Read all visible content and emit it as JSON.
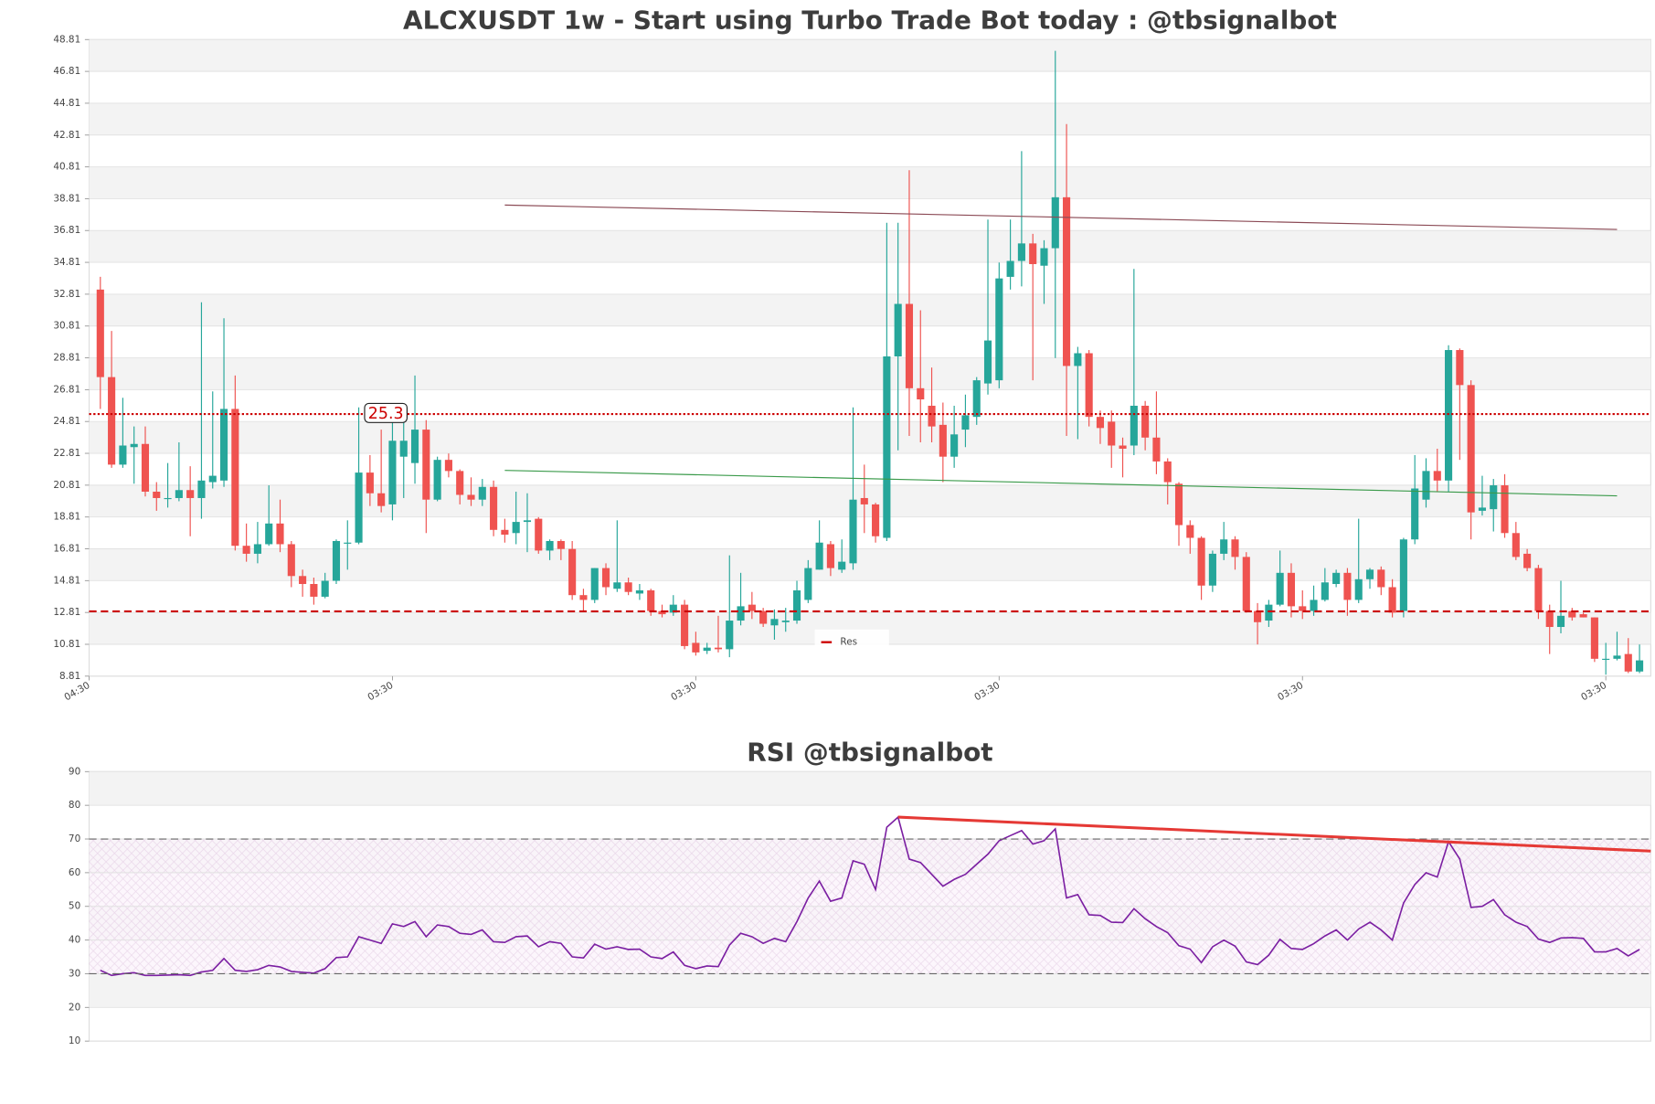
{
  "chart_data": [
    {
      "type": "candlestick",
      "title": "ALCXUSDT 1w - Start using Turbo Trade Bot today : @tbsignalbot",
      "up_color": "#26a69a",
      "down_color": "#ef5350",
      "open": [
        33.1,
        27.6,
        22.1,
        23.2,
        23.4,
        20.4,
        20.0,
        20.0,
        20.5,
        20.0,
        21.0,
        21.1,
        25.6,
        17.0,
        16.5,
        17.1,
        18.4,
        17.1,
        15.1,
        14.6,
        13.8,
        14.8,
        17.2,
        17.2,
        21.6,
        20.3,
        19.6,
        22.6,
        22.2,
        24.3,
        19.9,
        22.4,
        21.7,
        20.2,
        19.9,
        20.7,
        18.0,
        17.8,
        18.5,
        18.7,
        16.7,
        17.3,
        16.8,
        13.9,
        13.6,
        15.6,
        14.3,
        14.7,
        14.0,
        14.2,
        12.9,
        12.8,
        13.3,
        10.9,
        10.4,
        10.6,
        10.5,
        12.3,
        13.3,
        12.9,
        12.0,
        12.2,
        12.3,
        13.6,
        15.5,
        17.1,
        15.5,
        15.9,
        20.0,
        19.6,
        17.5,
        28.9,
        32.2,
        26.9,
        25.8,
        24.6,
        22.6,
        24.3,
        25.1,
        27.2,
        27.4,
        33.9,
        34.9,
        36.0,
        34.6,
        35.7,
        38.9,
        28.3,
        29.1,
        25.1,
        24.8,
        23.3,
        23.3,
        25.8,
        23.8,
        22.3,
        20.9,
        18.3,
        17.5,
        14.5,
        16.5,
        17.4,
        16.3,
        12.9,
        12.3,
        13.3,
        15.3,
        13.2,
        12.9,
        13.6,
        14.6,
        15.3,
        13.6,
        14.9,
        15.5,
        14.4,
        12.9,
        17.4,
        19.9,
        21.7,
        21.1,
        29.3,
        27.1,
        19.2,
        19.3,
        20.8,
        17.8,
        16.5,
        15.6,
        12.9,
        11.9,
        12.9,
        12.7,
        12.5,
        9.9,
        9.9,
        10.2,
        9.1
      ],
      "high": [
        33.9,
        30.5,
        26.3,
        24.5,
        24.5,
        21.0,
        22.2,
        23.5,
        22.0,
        32.3,
        26.7,
        31.3,
        27.7,
        18.4,
        18.5,
        20.8,
        19.9,
        17.3,
        15.5,
        15.0,
        15.3,
        17.4,
        18.6,
        25.7,
        22.7,
        24.3,
        25.4,
        25.0,
        27.7,
        24.9,
        22.6,
        22.8,
        21.8,
        21.3,
        21.2,
        21.1,
        18.7,
        20.4,
        20.3,
        18.8,
        17.4,
        17.4,
        17.3,
        14.3,
        15.6,
        15.9,
        18.6,
        15.0,
        14.6,
        14.3,
        13.3,
        13.9,
        13.6,
        11.6,
        10.9,
        12.6,
        16.4,
        15.3,
        14.1,
        13.1,
        13.0,
        13.1,
        14.8,
        16.1,
        18.6,
        17.3,
        17.4,
        25.7,
        22.1,
        19.7,
        37.3,
        37.3,
        40.6,
        31.8,
        28.2,
        26.0,
        25.8,
        26.5,
        27.6,
        37.5,
        34.8,
        37.5,
        41.8,
        36.6,
        36.2,
        48.1,
        43.5,
        29.5,
        29.3,
        25.5,
        25.5,
        23.8,
        34.4,
        26.1,
        26.7,
        22.5,
        21.0,
        18.6,
        17.6,
        16.7,
        18.5,
        17.6,
        16.6,
        13.4,
        13.6,
        16.7,
        15.9,
        14.2,
        14.5,
        15.6,
        15.5,
        15.6,
        18.7,
        15.6,
        15.7,
        14.9,
        17.5,
        22.7,
        22.5,
        23.1,
        29.6,
        29.4,
        27.4,
        21.4,
        21.2,
        21.5,
        18.5,
        16.8,
        15.8,
        13.3,
        14.8,
        13.1,
        12.8,
        12.5,
        10.9,
        11.6,
        11.2,
        10.8
      ],
      "low": [
        25.6,
        21.9,
        21.9,
        20.9,
        20.1,
        19.2,
        19.4,
        19.8,
        17.6,
        18.7,
        20.6,
        20.7,
        16.7,
        16.0,
        15.9,
        17.0,
        16.6,
        14.4,
        13.8,
        13.3,
        13.7,
        14.6,
        15.5,
        17.1,
        19.5,
        19.1,
        18.6,
        20.0,
        20.9,
        17.8,
        19.8,
        21.3,
        19.6,
        19.5,
        19.5,
        17.6,
        17.2,
        17.1,
        16.6,
        16.5,
        16.1,
        16.1,
        13.6,
        12.9,
        13.4,
        13.9,
        14.1,
        13.9,
        13.6,
        12.6,
        12.5,
        12.6,
        10.5,
        10.1,
        10.2,
        10.3,
        10.0,
        12.0,
        12.4,
        11.9,
        11.1,
        11.6,
        12.1,
        13.4,
        15.5,
        15.1,
        15.3,
        15.5,
        17.8,
        17.2,
        17.3,
        23.0,
        23.9,
        23.5,
        23.5,
        21.0,
        21.9,
        23.2,
        24.6,
        26.5,
        26.9,
        33.1,
        33.3,
        27.4,
        32.2,
        28.8,
        23.9,
        23.7,
        24.5,
        23.4,
        21.9,
        21.3,
        22.7,
        23.0,
        21.5,
        19.6,
        17.0,
        16.5,
        13.6,
        14.1,
        16.1,
        15.5,
        12.8,
        10.8,
        11.9,
        13.2,
        12.5,
        12.4,
        12.6,
        13.5,
        14.4,
        12.6,
        13.4,
        14.3,
        13.9,
        12.5,
        12.5,
        17.1,
        19.4,
        20.4,
        20.4,
        22.4,
        17.4,
        18.9,
        17.9,
        17.5,
        16.1,
        15.4,
        12.4,
        10.2,
        11.5,
        12.3,
        12.5,
        9.7,
        8.9,
        9.8,
        9.0,
        9.0
      ],
      "close": [
        27.6,
        22.1,
        23.3,
        23.4,
        20.4,
        20.0,
        20.0,
        20.5,
        20.0,
        21.1,
        21.4,
        25.6,
        17.0,
        16.5,
        17.1,
        18.4,
        17.1,
        15.1,
        14.6,
        13.8,
        14.8,
        17.3,
        17.2,
        21.6,
        20.3,
        19.5,
        23.6,
        23.6,
        24.3,
        19.9,
        22.4,
        21.7,
        20.2,
        19.9,
        20.7,
        18.0,
        17.7,
        18.5,
        18.6,
        16.7,
        17.3,
        16.8,
        13.9,
        13.6,
        15.6,
        14.4,
        14.7,
        14.1,
        14.2,
        12.9,
        12.7,
        13.3,
        10.7,
        10.3,
        10.6,
        10.5,
        12.3,
        13.2,
        12.9,
        12.1,
        12.4,
        12.3,
        14.2,
        15.6,
        17.2,
        15.6,
        16.0,
        19.9,
        19.6,
        17.6,
        28.9,
        32.2,
        26.9,
        26.2,
        24.5,
        22.6,
        24.0,
        25.2,
        27.4,
        29.9,
        33.8,
        34.9,
        36.0,
        34.7,
        35.7,
        38.9,
        28.3,
        29.1,
        25.1,
        24.4,
        23.3,
        23.1,
        25.8,
        23.8,
        22.3,
        21.0,
        18.3,
        17.5,
        14.5,
        16.5,
        17.4,
        16.3,
        12.9,
        12.2,
        13.3,
        15.3,
        13.2,
        12.9,
        13.6,
        14.7,
        15.3,
        13.6,
        14.9,
        15.5,
        14.4,
        12.8,
        17.4,
        20.6,
        21.7,
        21.1,
        29.3,
        27.1,
        19.1,
        19.4,
        20.8,
        17.8,
        16.3,
        15.6,
        12.9,
        11.9,
        12.6,
        12.5,
        12.5,
        9.9,
        9.9,
        10.1,
        9.1,
        9.8
      ],
      "xlim": [
        -1,
        138
      ],
      "xticks": [
        {
          "value": -1,
          "label": "04:30"
        },
        {
          "value": 26,
          "label": "03:30"
        },
        {
          "value": 53,
          "label": "03:30"
        },
        {
          "value": 80,
          "label": "03:30"
        },
        {
          "value": 107,
          "label": "03:30"
        },
        {
          "value": 134,
          "label": "03:30"
        }
      ],
      "ylim": [
        8.81,
        48.81
      ],
      "yticks": [
        8.81,
        10.81,
        12.81,
        14.81,
        16.81,
        18.81,
        20.81,
        22.81,
        24.81,
        26.81,
        28.81,
        30.81,
        32.81,
        34.81,
        36.81,
        38.81,
        40.81,
        42.81,
        44.81,
        46.81,
        48.81
      ],
      "hlines": [
        {
          "value": 25.28,
          "label": "25.3",
          "color": "#cc0000",
          "style": "dotted"
        },
        {
          "value": 12.88,
          "name": "Res",
          "color": "#cc0000",
          "style": "dashed"
        }
      ],
      "trendlines": [
        {
          "x": [
            36,
            135
          ],
          "y": [
            38.41,
            36.88
          ],
          "color": "#8b4a55"
        },
        {
          "x": [
            36,
            135
          ],
          "y": [
            21.74,
            20.14
          ],
          "color": "#3a9a4a"
        }
      ],
      "legend": "lower center"
    },
    {
      "type": "line",
      "title": "RSI @tbsignalbot",
      "color": "#7b1fa2",
      "values": [
        31,
        29.5,
        30,
        30.3,
        29.5,
        29.5,
        29.6,
        29.7,
        29.5,
        30.5,
        31,
        34.5,
        31,
        30.7,
        31.2,
        32.5,
        32,
        30.7,
        30.4,
        30.2,
        31.5,
        34.8,
        35,
        41,
        40,
        39,
        44.8,
        44,
        45.5,
        41,
        44.5,
        44,
        42,
        41.7,
        43,
        39.5,
        39.3,
        41,
        41.2,
        38,
        39.5,
        39,
        35,
        34.7,
        38.8,
        37.3,
        38,
        37.2,
        37.3,
        35,
        34.5,
        36.5,
        32.5,
        31.5,
        32.3,
        32.1,
        38.5,
        42,
        41,
        39,
        40.5,
        39.5,
        45.5,
        52.5,
        57.5,
        51.5,
        52.5,
        63.5,
        62.5,
        55,
        73.5,
        76.5,
        64,
        63,
        59.5,
        56,
        58,
        59.5,
        62.5,
        65.5,
        69.5,
        71,
        72.5,
        68.5,
        69.5,
        73,
        52.5,
        53.5,
        47.5,
        47.3,
        45.3,
        45.2,
        49.3,
        46.3,
        44,
        42.2,
        38.3,
        37.3,
        33.3,
        38,
        40,
        38.2,
        33.5,
        32.7,
        35.5,
        40.2,
        37.5,
        37.2,
        38.9,
        41.2,
        43,
        40,
        43.3,
        45.3,
        43,
        40,
        51,
        56.5,
        60,
        58.7,
        69.2,
        64,
        49.7,
        50,
        52,
        47.5,
        45.3,
        44,
        40.3,
        39.3,
        40.6,
        40.7,
        40.5,
        36.5,
        36.5,
        37.5,
        35.3,
        37.2
      ],
      "xlim": [
        -1,
        138
      ],
      "ylim": [
        10,
        90
      ],
      "yticks": [
        10,
        20,
        30,
        40,
        50,
        60,
        70,
        80,
        90
      ],
      "hlines": [
        {
          "value": 70,
          "color": "#666666",
          "style": "dashed"
        },
        {
          "value": 30,
          "color": "#666666",
          "style": "dashed"
        }
      ],
      "trendlines": [
        {
          "x": [
            71,
            138
          ],
          "y": [
            76.5,
            66.4
          ],
          "color": "#e53935"
        }
      ]
    }
  ]
}
